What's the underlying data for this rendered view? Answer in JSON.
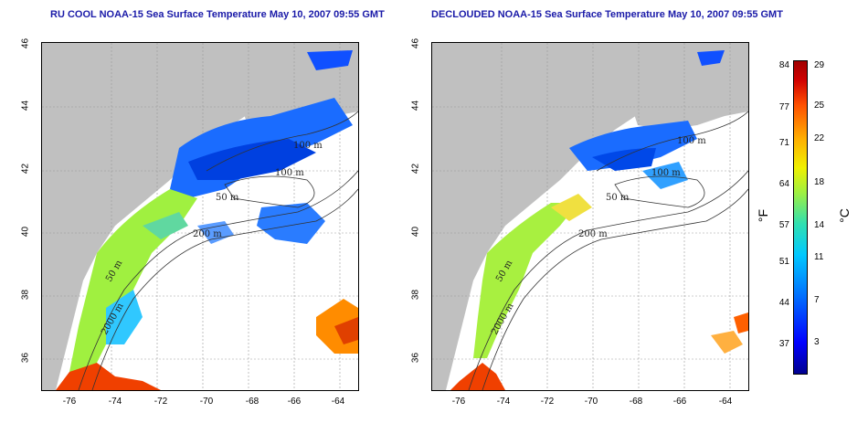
{
  "titles": {
    "left": "RU COOL NOAA-15 Sea Surface Temperature May 10, 2007 09:55 GMT",
    "right": "DECLOUDED NOAA-15 Sea Surface Temperature May 10, 2007 09:55 GMT"
  },
  "axes": {
    "x_ticks": [
      "-76",
      "-74",
      "-72",
      "-70",
      "-68",
      "-66",
      "-64"
    ],
    "y_ticks": [
      "46",
      "44",
      "42",
      "40",
      "38",
      "36"
    ]
  },
  "contour_labels": {
    "left": [
      "100 m",
      "100 m",
      "50 m",
      "200 m",
      "50 m",
      "2000 m"
    ],
    "right": [
      "100 m",
      "100 m",
      "50 m",
      "200 m",
      "50 m",
      "2000 m"
    ]
  },
  "colorbar": {
    "fahrenheit_ticks": [
      "84",
      "77",
      "71",
      "64",
      "57",
      "51",
      "44",
      "37"
    ],
    "celsius_ticks": [
      "29",
      "25",
      "22",
      "18",
      "14",
      "11",
      "7",
      "3"
    ],
    "fahrenheit_label": "°F",
    "celsius_label": "°C"
  },
  "colors": {
    "land": "#c0c0c0",
    "ocean_no_data": "#ffffff",
    "title": "#1a1aa8",
    "contour": "#333333"
  }
}
